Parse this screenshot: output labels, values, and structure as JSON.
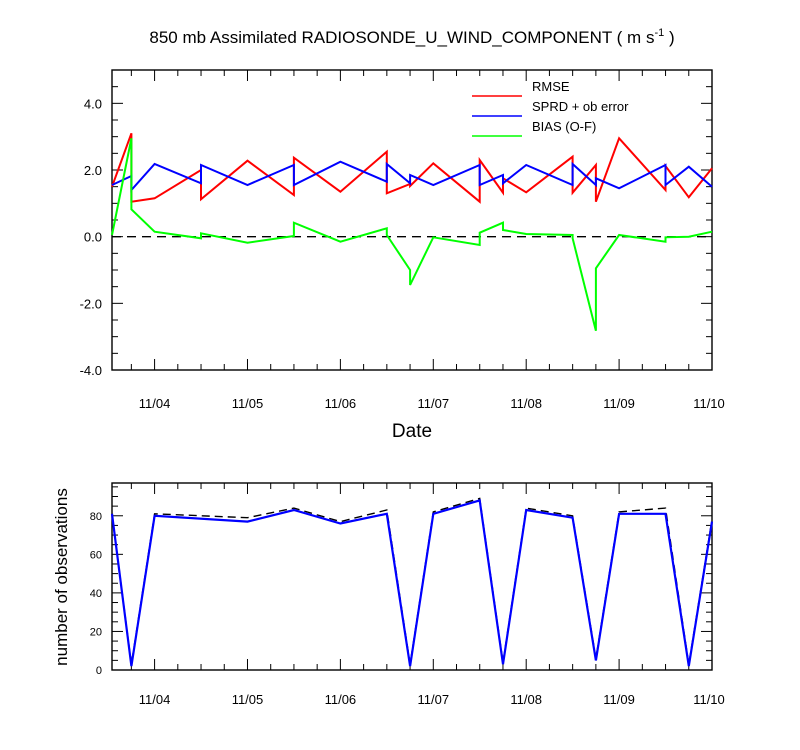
{
  "chart_data": [
    {
      "type": "line",
      "title": "850 mb Assimilated RADIOSONDE_U_WIND_COMPONENT ( m s",
      "title_units_exp": "-1",
      "title_tail": " )",
      "xlabel": "Date",
      "ylabel": "",
      "x_tick_labels": [
        "11/04",
        "11/05",
        "11/06",
        "11/07",
        "11/08",
        "11/09",
        "11/10"
      ],
      "x_range": [
        "11/03 13:00",
        "11/10 00:00"
      ],
      "ylim": [
        -4.0,
        5.0
      ],
      "y_tick_labels": [
        "-4.0",
        "-2.0",
        "0.0",
        "2.0",
        "4.0"
      ],
      "reference_line": {
        "y": 0.0,
        "style": "dashed"
      },
      "legend": {
        "placement": "top-right",
        "entries": [
          "RMSE",
          "SPRD + ob error",
          "BIAS (O-F)"
        ]
      },
      "x": [
        "11/03 13:00",
        "11/03 18:00",
        "11/03 18:00",
        "11/04 00:00",
        "11/04 12:00",
        "11/04 12:00",
        "11/05 00:00",
        "11/05 12:00",
        "11/05 12:00",
        "11/06 00:00",
        "11/06 12:00",
        "11/06 12:00",
        "11/06 18:00",
        "11/06 18:00",
        "11/07 00:00",
        "11/07 12:00",
        "11/07 12:00",
        "11/07 18:00",
        "11/07 18:00",
        "11/08 00:00",
        "11/08 12:00",
        "11/08 12:00",
        "11/08 18:00",
        "11/08 18:00",
        "11/09 00:00",
        "11/09 12:00",
        "11/09 12:00",
        "11/09 18:00",
        "11/10 00:00"
      ],
      "series": [
        {
          "name": "RMSE",
          "color": "#ff0000",
          "values": [
            1.5,
            3.1,
            1.05,
            1.15,
            2.0,
            1.12,
            2.28,
            1.25,
            2.37,
            1.35,
            2.55,
            1.3,
            1.58,
            1.52,
            2.2,
            1.05,
            2.3,
            1.32,
            1.75,
            1.33,
            2.4,
            1.32,
            2.15,
            1.05,
            2.95,
            1.4,
            2.12,
            1.18,
            2.05
          ]
        },
        {
          "name": "SPRD + ob error",
          "color": "#0000ff",
          "values": [
            1.55,
            1.82,
            1.4,
            2.18,
            1.6,
            2.15,
            1.55,
            2.15,
            1.55,
            2.25,
            1.65,
            2.18,
            1.6,
            1.85,
            1.55,
            2.15,
            1.55,
            1.85,
            1.6,
            2.15,
            1.55,
            2.18,
            1.55,
            1.75,
            1.45,
            2.15,
            1.55,
            2.1,
            1.5
          ]
        },
        {
          "name": "BIAS (O-F)",
          "color": "#00ff00",
          "values": [
            0.05,
            2.95,
            0.82,
            0.15,
            -0.05,
            0.1,
            -0.18,
            0.02,
            0.42,
            -0.15,
            0.25,
            0.05,
            -1.0,
            -1.45,
            -0.02,
            -0.25,
            0.12,
            0.42,
            0.2,
            0.08,
            0.05,
            -0.05,
            -2.82,
            -0.95,
            0.05,
            -0.15,
            -0.02,
            0.0,
            0.15
          ]
        }
      ]
    },
    {
      "type": "line",
      "title": "",
      "xlabel": "",
      "ylabel": "number of observations",
      "x_tick_labels": [
        "11/04",
        "11/05",
        "11/06",
        "11/07",
        "11/08",
        "11/09",
        "11/10"
      ],
      "ylim": [
        0,
        97
      ],
      "y_tick_labels": [
        "0",
        "20",
        "40",
        "60",
        "80"
      ],
      "x": [
        "11/03 13:00",
        "11/03 18:00",
        "11/04 00:00",
        "11/05 00:00",
        "11/05 12:00",
        "11/06 00:00",
        "11/06 12:00",
        "11/06 18:00",
        "11/07 00:00",
        "11/07 12:00",
        "11/07 18:00",
        "11/08 00:00",
        "11/08 12:00",
        "11/08 18:00",
        "11/09 00:00",
        "11/09 12:00",
        "11/09 18:00",
        "11/10 00:00"
      ],
      "series": [
        {
          "style": "dashed",
          "color": "#000000",
          "values": [
            81,
            3,
            81,
            79,
            84,
            77,
            83,
            3,
            82,
            89,
            4,
            84,
            80,
            6,
            82,
            84,
            3,
            78
          ]
        },
        {
          "style": "solid",
          "color": "#0000ff",
          "values": [
            81,
            2,
            80,
            77,
            83,
            76,
            81,
            2,
            81,
            88,
            3,
            83,
            79,
            5,
            81,
            81,
            2,
            77
          ]
        }
      ]
    }
  ]
}
